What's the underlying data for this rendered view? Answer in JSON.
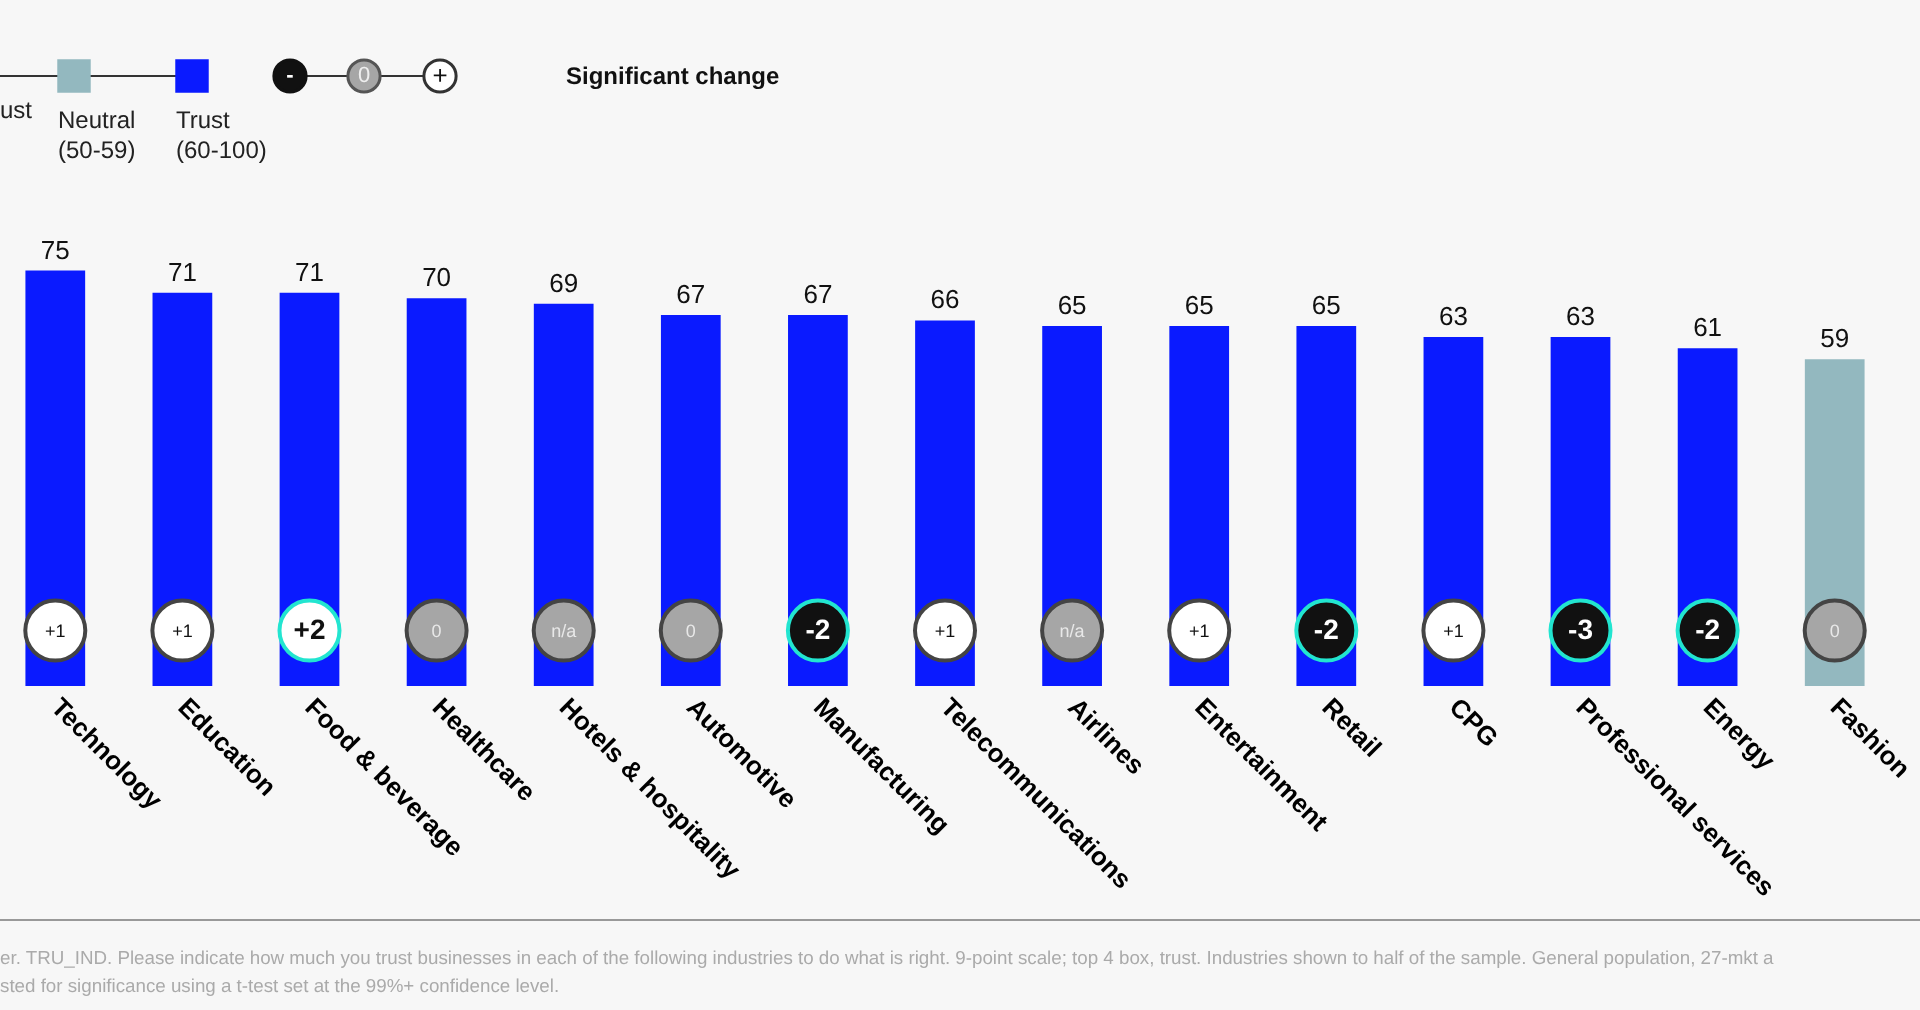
{
  "chart_data": {
    "type": "bar",
    "categories": [
      "Technology",
      "Education",
      "Food & beverage",
      "Healthcare",
      "Hotels & hospitality",
      "Automotive",
      "Manufacturing",
      "Telecommunications",
      "Airlines",
      "Entertainment",
      "Retail",
      "CPG",
      "Professional services",
      "Energy",
      "Fashion"
    ],
    "series": [
      {
        "name": "Trust (60-100)",
        "color": "#0a1aff",
        "values": [
          75,
          71,
          71,
          70,
          69,
          67,
          67,
          66,
          65,
          65,
          65,
          63,
          63,
          61,
          null
        ]
      },
      {
        "name": "Neutral (50-59)",
        "color": "#93b8bf",
        "values": [
          null,
          null,
          null,
          null,
          null,
          null,
          null,
          null,
          null,
          null,
          null,
          null,
          null,
          null,
          59
        ]
      }
    ],
    "data_labels": true,
    "legend": "top left",
    "annotations": [
      {
        "text": "+1",
        "x": "Technology",
        "y": 10
      },
      {
        "text": "+1",
        "x": "Education",
        "y": 10
      },
      {
        "text": "+2",
        "x": "Food & beverage",
        "y": 10
      },
      {
        "text": "0",
        "x": "Healthcare",
        "y": 10
      },
      {
        "text": "n/a",
        "x": "Hotels & hospitality",
        "y": 10
      },
      {
        "text": "0",
        "x": "Automotive",
        "y": 10
      },
      {
        "text": "-2",
        "x": "Manufacturing",
        "y": 10
      },
      {
        "text": "+1",
        "x": "Telecommunications",
        "y": 10
      },
      {
        "text": "n/a",
        "x": "Airlines",
        "y": 10
      },
      {
        "text": "+1",
        "x": "Entertainment",
        "y": 10
      },
      {
        "text": "-2",
        "x": "Retail",
        "y": 10
      },
      {
        "text": "+1",
        "x": "CPG",
        "y": 10
      },
      {
        "text": "-3",
        "x": "Professional services",
        "y": 10
      },
      {
        "text": "-2",
        "x": "Energy",
        "y": 10
      },
      {
        "text": "0",
        "x": "Fashion",
        "y": 10
      },
      "ust",
      "-",
      "0",
      "+",
      "Significant change",
      "er. TRU_IND. Please indicate how much you trust businesses in each of the following industries to do what is right. 9-point scale; top 4 box, trust. Industries shown to half of the sample. General population, 27-mkt a",
      "sted for significance using a t-test set at the 99%+ confidence level."
    ]
  }
}
